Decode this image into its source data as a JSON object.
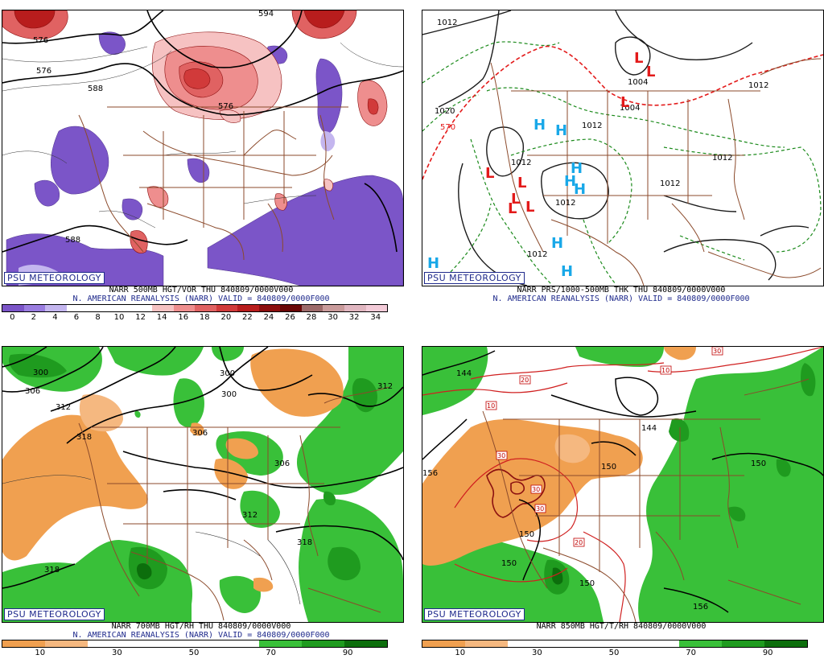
{
  "panels": [
    {
      "badge": "PSU METEOROLOGY",
      "line1": "NARR 500MB HGT/VOR THU 840809/0000V000",
      "line2": "N. AMERICAN REANALYSIS (NARR) VALID = 840809/0000F000",
      "colorbar": [
        "#7b55c8",
        "#9a7de0",
        "#c4b6ef",
        "#ffffff",
        "#ffffff",
        "#ffffff",
        "#ffffff",
        "#f6c2c2",
        "#ee8e8e",
        "#e06262",
        "#d13a3a",
        "#b81d1d",
        "#8c0f0f",
        "#6a0707",
        "#9c6a6a",
        "#c99b9b",
        "#e0b6c0",
        "#f3cbd8"
      ],
      "ticks": [
        "0",
        "2",
        "4",
        "6",
        "8",
        "10",
        "12",
        "14",
        "16",
        "18",
        "20",
        "22",
        "24",
        "26",
        "28",
        "30",
        "32",
        "34"
      ],
      "contour_labels": [
        "594",
        "576",
        "588",
        "588",
        "576",
        "576"
      ]
    },
    {
      "badge": "PSU METEOROLOGY",
      "line1": "NARR PRS/1000-500MB THK THU 840809/0000V000",
      "line2": "N. AMERICAN REANALYSIS (NARR) VALID = 840809/0000F000",
      "contour_labels": [
        "1012",
        "1020",
        "1004",
        "1004",
        "1012",
        "1012",
        "1012",
        "1012",
        "1012",
        "1012",
        "1012",
        "570"
      ],
      "highs": [
        "H",
        "H",
        "H",
        "H",
        "H",
        "H",
        "H",
        "H"
      ],
      "lows": [
        "L",
        "L",
        "L",
        "L",
        "L",
        "L",
        "L",
        "L"
      ]
    },
    {
      "badge": "PSU METEOROLOGY",
      "line1": "NARR 700MB HGT/RH THU 840809/0000V000",
      "line2": "N. AMERICAN REANALYSIS (NARR) VALID = 840809/0000F000",
      "colorbar": [
        "#f0a050",
        "#f5b880",
        "#ffffff",
        "#ffffff",
        "#ffffff",
        "#ffffff",
        "#39c039",
        "#1f9b1f",
        "#0c6e0c"
      ],
      "ticks": [
        "10",
        "30",
        "50",
        "70",
        "90"
      ],
      "contour_labels": [
        "300",
        "306",
        "312",
        "318",
        "300",
        "300",
        "306",
        "312",
        "306",
        "312",
        "318",
        "318"
      ]
    },
    {
      "badge": "PSU METEOROLOGY",
      "line1": "NARR 850MB HGT/T/RH 840809/0000V000",
      "colorbar": [
        "#f0a050",
        "#f5b880",
        "#ffffff",
        "#ffffff",
        "#ffffff",
        "#ffffff",
        "#39c039",
        "#1f9b1f",
        "#0c6e0c"
      ],
      "ticks": [
        "10",
        "30",
        "50",
        "70",
        "90"
      ],
      "contour_labels": [
        "144",
        "156",
        "144",
        "150",
        "150",
        "150",
        "150",
        "156",
        "150"
      ],
      "temp_labels": [
        "10",
        "20",
        "30",
        "30",
        "30",
        "20",
        "10",
        "30"
      ]
    }
  ]
}
